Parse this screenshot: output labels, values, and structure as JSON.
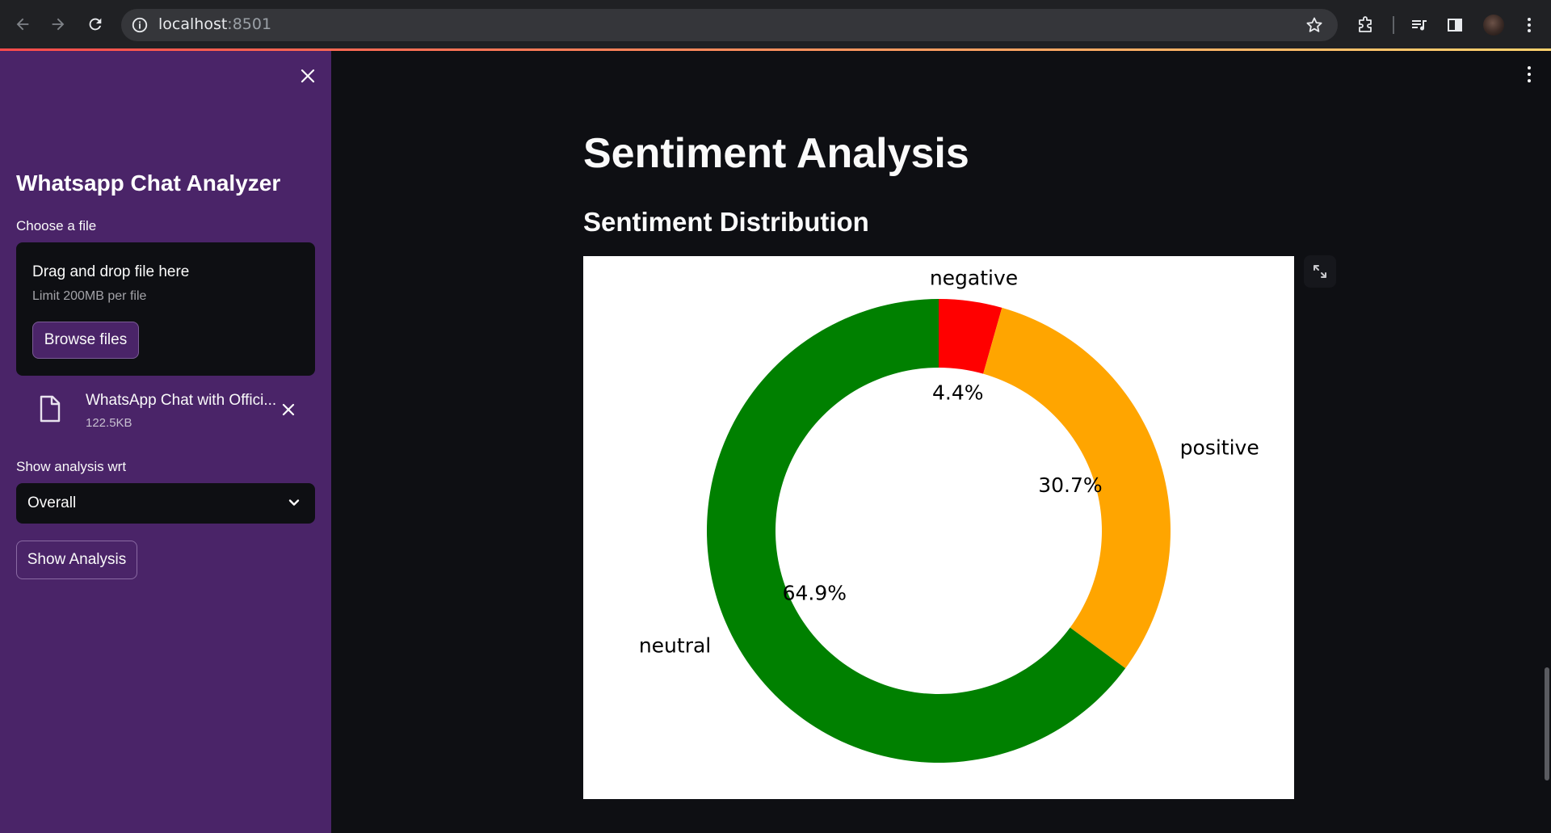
{
  "browser": {
    "url_host": "localhost",
    "url_port": ":8501"
  },
  "sidebar": {
    "title": "Whatsapp Chat Analyzer",
    "choose_file_label": "Choose a file",
    "uploader": {
      "drag_text": "Drag and drop file here",
      "limit_text": "Limit 200MB per file",
      "browse_label": "Browse files"
    },
    "uploaded_file": {
      "name": "WhatsApp Chat with Offici...",
      "size": "122.5KB"
    },
    "analysis_label": "Show analysis wrt",
    "analysis_select_value": "Overall",
    "show_button_label": "Show Analysis"
  },
  "main": {
    "title": "Sentiment Analysis",
    "subtitle": "Sentiment Distribution"
  },
  "chart_data": {
    "type": "pie",
    "donut": true,
    "categories": [
      "negative",
      "positive",
      "neutral"
    ],
    "values": [
      4.4,
      30.7,
      64.9
    ],
    "value_labels": [
      "4.4%",
      "30.7%",
      "64.9%"
    ],
    "colors": [
      "#ff0000",
      "#ffa500",
      "#008000"
    ],
    "start_angle_deg": 90,
    "direction": "clockwise"
  },
  "icons": [
    "back-arrow-icon",
    "forward-arrow-icon",
    "reload-icon",
    "info-icon",
    "star-icon",
    "extensions-icon",
    "media-icon",
    "side-panel-icon",
    "kebab-menu-icon",
    "close-icon",
    "file-icon",
    "chevron-down-icon",
    "expand-icon"
  ]
}
